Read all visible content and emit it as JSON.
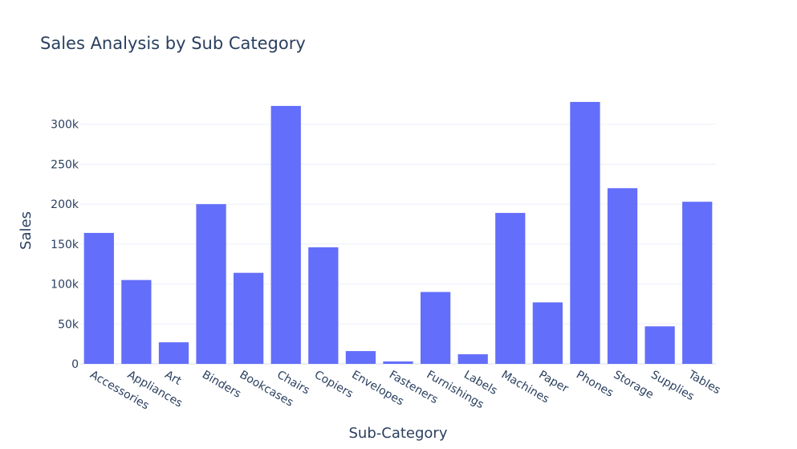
{
  "chart_data": {
    "type": "bar",
    "title": "Sales Analysis by Sub Category",
    "xlabel": "Sub-Category",
    "ylabel": "Sales",
    "categories": [
      "Accessories",
      "Appliances",
      "Art",
      "Binders",
      "Bookcases",
      "Chairs",
      "Copiers",
      "Envelopes",
      "Fasteners",
      "Furnishings",
      "Labels",
      "Machines",
      "Paper",
      "Phones",
      "Storage",
      "Supplies",
      "Tables"
    ],
    "values": [
      164000,
      105000,
      27000,
      200000,
      114000,
      323000,
      146000,
      16000,
      3000,
      90000,
      12000,
      189000,
      77000,
      328000,
      220000,
      47000,
      203000
    ],
    "ylim": [
      0,
      345000
    ],
    "yticks": [
      0,
      50000,
      100000,
      150000,
      200000,
      250000,
      300000
    ],
    "ytick_labels": [
      "0",
      "50k",
      "100k",
      "150k",
      "200k",
      "250k",
      "300k"
    ],
    "color": "#636efa",
    "grid": true
  }
}
